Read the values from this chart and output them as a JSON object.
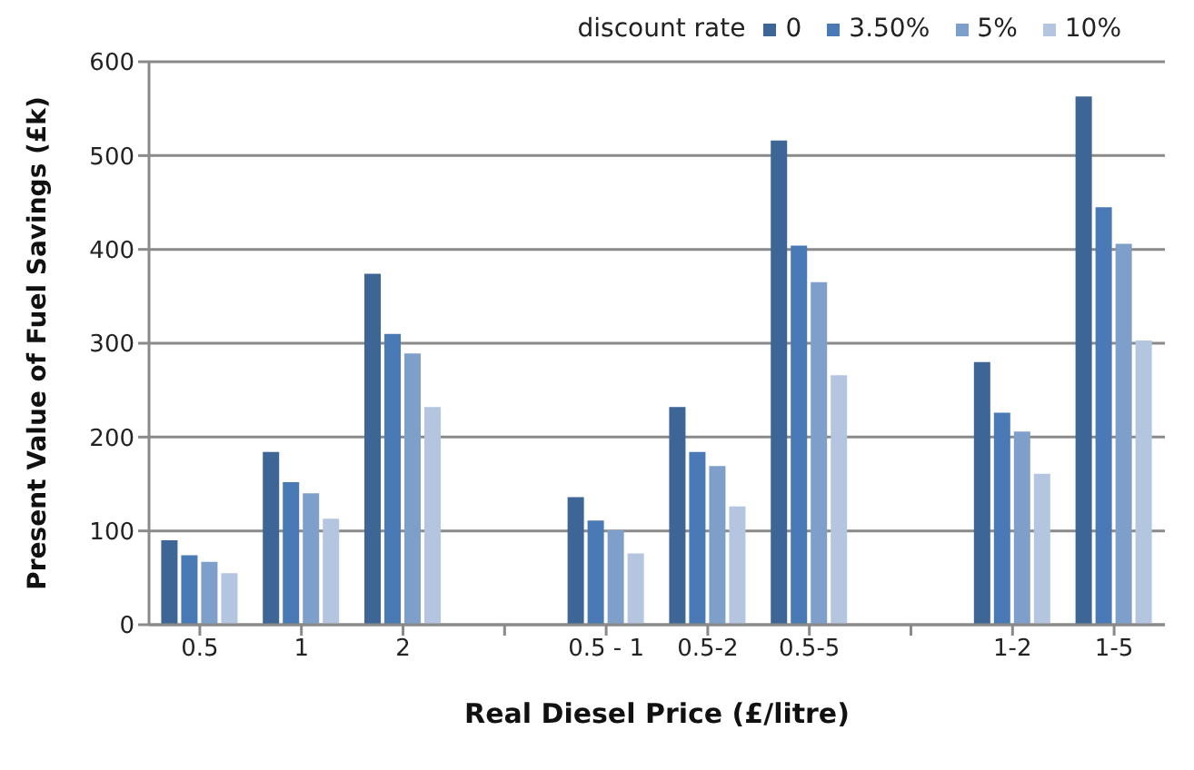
{
  "chart_data": {
    "type": "bar",
    "xlabel": "Real Diesel Price (£/litre)",
    "ylabel": "Present Value of Fuel Savings (£k)",
    "legend_title": "discount rate",
    "legend": "top right",
    "grid": "y",
    "categories": [
      "0.5",
      "1",
      "2",
      null,
      "0.5 - 1",
      "0.5-2",
      "0.5-5",
      null,
      "1-2",
      "1-5"
    ],
    "ylim": [
      0,
      600
    ],
    "yticks": [
      0,
      100,
      200,
      300,
      400,
      500,
      600
    ],
    "series": [
      {
        "name": "0",
        "color": "#3d6595",
        "values": [
          90,
          184,
          374,
          null,
          136,
          232,
          516,
          null,
          280,
          563
        ]
      },
      {
        "name": "3.50%",
        "color": "#4a7ab5",
        "values": [
          74,
          152,
          310,
          null,
          111,
          184,
          404,
          null,
          226,
          445
        ]
      },
      {
        "name": "5%",
        "color": "#7f9fcb",
        "values": [
          67,
          140,
          289,
          null,
          101,
          169,
          365,
          null,
          206,
          406
        ]
      },
      {
        "name": "10%",
        "color": "#b4c5e0",
        "values": [
          55,
          113,
          232,
          null,
          76,
          126,
          266,
          null,
          161,
          303
        ]
      }
    ]
  }
}
